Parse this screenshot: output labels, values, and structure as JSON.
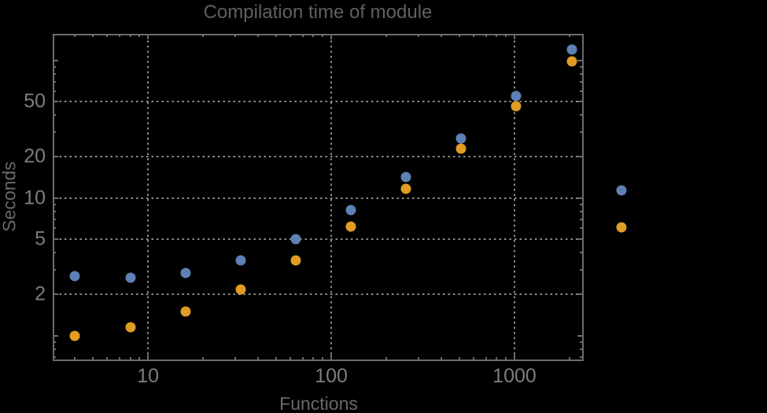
{
  "chart_data": {
    "type": "scatter",
    "title": "Compilation time of module",
    "xlabel": "Functions",
    "ylabel": "Seconds",
    "xscale": "log",
    "yscale": "log",
    "xlim": [
      3.05,
      2340
    ],
    "ylim": [
      0.67,
      154
    ],
    "grid": true,
    "grid_style": "dotted",
    "x": [
      4,
      8,
      16,
      32,
      64,
      128,
      256,
      512,
      1024,
      2048
    ],
    "series": [
      {
        "name": "series-1-blue",
        "color": "#5E81B5",
        "values": [
          2.7,
          2.65,
          2.85,
          3.5,
          5.05,
          8.2,
          14.2,
          27,
          55,
          120
        ]
      },
      {
        "name": "series-2-orange",
        "color": "#E19C24",
        "values": [
          1.0,
          1.15,
          1.5,
          2.15,
          3.5,
          6.2,
          11.7,
          22.7,
          46.5,
          98
        ]
      }
    ],
    "x_ticks": [
      {
        "value": 10,
        "label": "10"
      },
      {
        "value": 100,
        "label": "100"
      },
      {
        "value": 1000,
        "label": "1000"
      }
    ],
    "y_ticks": [
      {
        "value": 2,
        "label": "2"
      },
      {
        "value": 5,
        "label": "5"
      },
      {
        "value": 10,
        "label": "10"
      },
      {
        "value": 20,
        "label": "20"
      },
      {
        "value": 50,
        "label": "50"
      }
    ],
    "legend": {
      "position": "right-of-plot",
      "labels_visible": false,
      "entries": [
        {
          "name": "series-1-blue",
          "color": "#5E81B5"
        },
        {
          "name": "series-2-orange",
          "color": "#E19C24"
        }
      ]
    }
  },
  "colors": {
    "background": "#000000",
    "frame": "#6b6b6b",
    "grid": "#8d8d8d",
    "title_text": "#606060",
    "axis_label_text": "#696969",
    "tick_label_text": "#7d7d7d",
    "series_blue": "#5E81B5",
    "series_orange": "#E19C24"
  }
}
